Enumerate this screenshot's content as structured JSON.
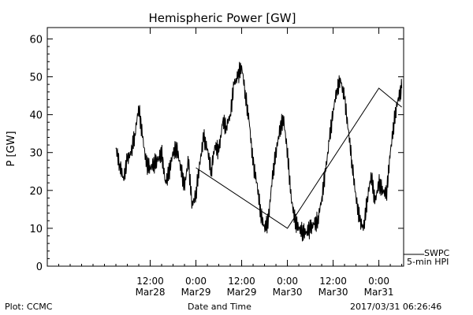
{
  "chart_data": {
    "type": "line",
    "title": "Hemispheric Power [GW]",
    "ylabel": "P [GW]",
    "xlabel": "Date and Time",
    "ylim": [
      0,
      63
    ],
    "yticks": [
      0,
      10,
      20,
      30,
      40,
      50,
      60
    ],
    "xlim": [
      "2017-03-27T09:00",
      "2017-03-31T06:30"
    ],
    "xticks": [
      {
        "at": "2017-03-28T12:00",
        "line1": "12:00",
        "line2": "Mar28"
      },
      {
        "at": "2017-03-29T00:00",
        "line1": "0:00",
        "line2": "Mar29"
      },
      {
        "at": "2017-03-29T12:00",
        "line1": "12:00",
        "line2": "Mar29"
      },
      {
        "at": "2017-03-30T00:00",
        "line1": "0:00",
        "line2": "Mar30"
      },
      {
        "at": "2017-03-30T12:00",
        "line1": "12:00",
        "line2": "Mar30"
      },
      {
        "at": "2017-03-31T00:00",
        "line1": "0:00",
        "line2": "Mar31"
      }
    ],
    "grid": false,
    "legend_position": "bottom-right",
    "series": [
      {
        "name": "SWPC",
        "style": "noisy",
        "x": [
          "2017-03-28T03:00",
          "2017-03-28T04:00",
          "2017-03-28T05:00",
          "2017-03-28T06:00",
          "2017-03-28T07:00",
          "2017-03-28T08:00",
          "2017-03-28T09:00",
          "2017-03-28T10:00",
          "2017-03-28T11:00",
          "2017-03-28T12:00",
          "2017-03-28T13:00",
          "2017-03-28T14:00",
          "2017-03-28T15:00",
          "2017-03-28T16:00",
          "2017-03-28T17:00",
          "2017-03-28T18:00",
          "2017-03-28T19:00",
          "2017-03-28T20:00",
          "2017-03-28T21:00",
          "2017-03-28T22:00",
          "2017-03-28T23:00",
          "2017-03-29T00:00",
          "2017-03-29T01:00",
          "2017-03-29T02:00",
          "2017-03-29T03:00",
          "2017-03-29T04:00",
          "2017-03-29T05:00",
          "2017-03-29T06:00",
          "2017-03-29T07:00",
          "2017-03-29T08:00",
          "2017-03-29T09:00",
          "2017-03-29T10:00",
          "2017-03-29T11:00",
          "2017-03-29T12:00",
          "2017-03-29T13:00",
          "2017-03-29T14:00",
          "2017-03-29T15:00",
          "2017-03-29T16:00",
          "2017-03-29T17:00",
          "2017-03-29T18:00",
          "2017-03-29T19:00",
          "2017-03-29T20:00",
          "2017-03-29T21:00",
          "2017-03-29T22:00",
          "2017-03-29T23:00",
          "2017-03-30T00:00",
          "2017-03-30T01:00",
          "2017-03-30T02:00",
          "2017-03-30T03:00",
          "2017-03-30T04:00",
          "2017-03-30T05:00",
          "2017-03-30T06:00",
          "2017-03-30T07:00",
          "2017-03-30T08:00",
          "2017-03-30T09:00",
          "2017-03-30T10:00",
          "2017-03-30T11:00",
          "2017-03-30T12:00",
          "2017-03-30T13:00",
          "2017-03-30T14:00",
          "2017-03-30T15:00",
          "2017-03-30T16:00",
          "2017-03-30T17:00",
          "2017-03-30T18:00",
          "2017-03-30T19:00",
          "2017-03-30T20:00",
          "2017-03-30T21:00",
          "2017-03-30T22:00",
          "2017-03-30T23:00",
          "2017-03-31T00:00",
          "2017-03-31T01:00",
          "2017-03-31T02:00",
          "2017-03-31T03:00",
          "2017-03-31T04:00",
          "2017-03-31T05:00",
          "2017-03-31T06:00"
        ],
        "y": [
          31,
          27,
          23,
          28,
          30,
          35,
          42,
          34,
          27,
          26,
          27,
          28,
          30,
          22,
          25,
          30,
          31,
          26,
          21,
          28,
          16,
          19,
          27,
          34,
          31,
          25,
          32,
          30,
          38,
          37,
          40,
          48,
          50,
          53,
          45,
          38,
          27,
          22,
          14,
          10,
          12,
          23,
          30,
          36,
          39,
          30,
          18,
          12,
          10,
          9,
          9,
          10,
          11,
          12,
          18,
          25,
          33,
          41,
          47,
          49,
          44,
          36,
          27,
          18,
          12,
          10,
          18,
          24,
          17,
          22,
          20,
          19,
          30,
          38,
          44,
          47
        ]
      },
      {
        "name": "5-min HPI",
        "style": "segments",
        "x": [
          "2017-03-29T00:00",
          "2017-03-30T00:00",
          "2017-03-31T00:00",
          "2017-03-31T06:00"
        ],
        "y": [
          26,
          10,
          47,
          42
        ]
      }
    ]
  },
  "footer": {
    "credit": "Plot: CCMC",
    "axis_title": "Date and Time",
    "stamp": "2017/03/31 06:26:46"
  }
}
